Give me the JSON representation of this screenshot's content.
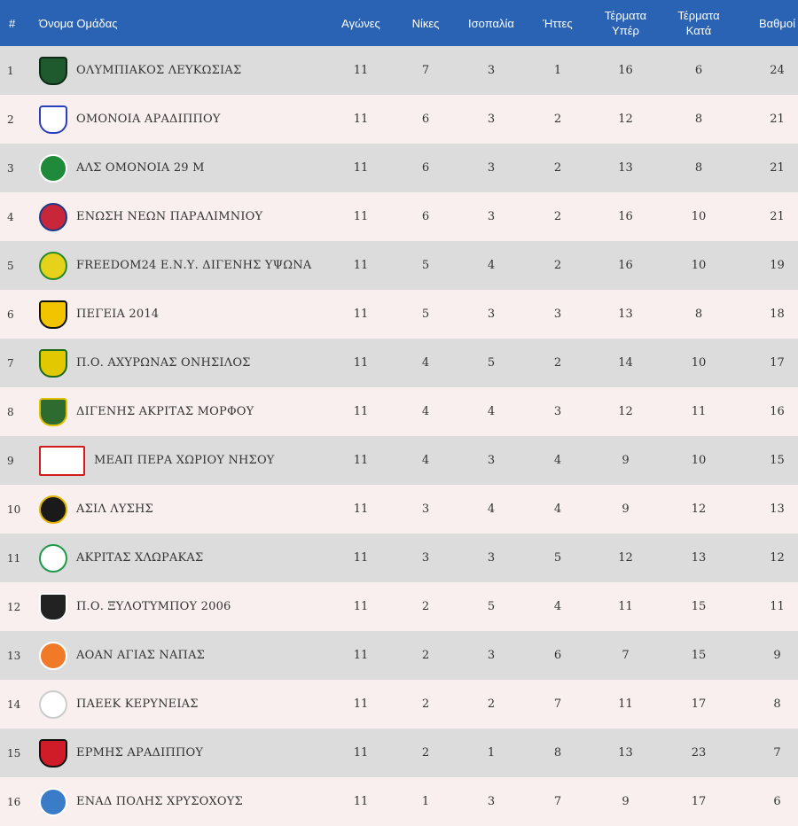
{
  "headers": {
    "pos": "#",
    "team": "Όνομα Ομάδας",
    "played": "Αγώνες",
    "wins": "Νίκες",
    "draws": "Ισοπαλία",
    "losses": "Ήττες",
    "goals_for": "Τέρματα\nΥπέρ",
    "goals_against": "Τέρματα\nΚατά",
    "points": "Βαθμοί"
  },
  "colors": {
    "header_bg": "#2b63b4",
    "row_odd": "#dcdcdc",
    "row_even": "#f9efef"
  },
  "rows": [
    {
      "pos": "1",
      "team": "ΟΛΥΜΠΙΑΚΟΣ ΛΕΥΚΩΣΙΑΣ",
      "played": "11",
      "wins": "7",
      "draws": "3",
      "losses": "1",
      "gf": "16",
      "ga": "6",
      "pts": "24",
      "logo": {
        "icon": "olympiakos-crest-icon",
        "bg": "#1f5a2e",
        "border": "#0d2a14",
        "shape": "shield"
      }
    },
    {
      "pos": "2",
      "team": "ΟΜΟΝΟΙΑ ΑΡΑΔΙΠΠΟΥ",
      "played": "11",
      "wins": "6",
      "draws": "3",
      "losses": "2",
      "gf": "12",
      "ga": "8",
      "pts": "21",
      "logo": {
        "icon": "omonoia-aradippou-crest-icon",
        "bg": "#ffffff",
        "border": "#2a3fbf",
        "shape": "shield"
      }
    },
    {
      "pos": "3",
      "team": "ΑΛΣ ΟΜΟΝΟΙΑ 29 Μ",
      "played": "11",
      "wins": "6",
      "draws": "3",
      "losses": "2",
      "gf": "13",
      "ga": "8",
      "pts": "21",
      "logo": {
        "icon": "omonoia-29m-crest-icon",
        "bg": "#1e8a3a",
        "border": "#ffffff",
        "shape": "circle"
      }
    },
    {
      "pos": "4",
      "team": "ΕΝΩΣΗ ΝΕΩΝ ΠΑΡΑΛΙΜΝΙΟΥ",
      "played": "11",
      "wins": "6",
      "draws": "3",
      "losses": "2",
      "gf": "16",
      "ga": "10",
      "pts": "21",
      "logo": {
        "icon": "enp-crest-icon",
        "bg": "#c8263a",
        "border": "#1c3a8a",
        "shape": "circle"
      }
    },
    {
      "pos": "5",
      "team": "FREEDOM24 Ε.Ν.Υ. ΔΙΓΕΝΗΣ ΥΨΩΝΑ",
      "played": "11",
      "wins": "5",
      "draws": "4",
      "losses": "2",
      "gf": "16",
      "ga": "10",
      "pts": "19",
      "logo": {
        "icon": "digenis-ypsona-crest-icon",
        "bg": "#e6d21a",
        "border": "#2a8a2a",
        "shape": "circle"
      }
    },
    {
      "pos": "6",
      "team": "ΠΕΓΕΙΑ 2014",
      "played": "11",
      "wins": "5",
      "draws": "3",
      "losses": "3",
      "gf": "13",
      "ga": "8",
      "pts": "18",
      "logo": {
        "icon": "pegeia-crest-icon",
        "bg": "#f2c400",
        "border": "#111111",
        "shape": "shield"
      }
    },
    {
      "pos": "7",
      "team": "Π.Ο. ΑΧΥΡΩΝΑΣ ΟΝΗΣΙΛΟΣ",
      "played": "11",
      "wins": "4",
      "draws": "5",
      "losses": "2",
      "gf": "14",
      "ga": "10",
      "pts": "17",
      "logo": {
        "icon": "achyronas-crest-icon",
        "bg": "#e2c800",
        "border": "#1a6a1a",
        "shape": "shield"
      }
    },
    {
      "pos": "8",
      "team": "ΔΙΓΕΝΗΣ ΑΚΡΙΤΑΣ ΜΟΡΦΟΥ",
      "played": "11",
      "wins": "4",
      "draws": "4",
      "losses": "3",
      "gf": "12",
      "ga": "11",
      "pts": "16",
      "logo": {
        "icon": "digenis-morfou-crest-icon",
        "bg": "#2e6b2e",
        "border": "#e0c000",
        "shape": "shield"
      }
    },
    {
      "pos": "9",
      "team": "ΜΕΑΠ ΠΕΡΑ ΧΩΡΙΟΥ ΝΗΣΟΥ",
      "played": "11",
      "wins": "4",
      "draws": "3",
      "losses": "4",
      "gf": "9",
      "ga": "10",
      "pts": "15",
      "logo": {
        "icon": "meap-crest-icon",
        "bg": "#ffffff",
        "border": "#d01c1c",
        "shape": "rect"
      }
    },
    {
      "pos": "10",
      "team": "ΑΣΙΛ ΛΥΣΗΣ",
      "played": "11",
      "wins": "3",
      "draws": "4",
      "losses": "4",
      "gf": "9",
      "ga": "12",
      "pts": "13",
      "logo": {
        "icon": "asil-lysis-crest-icon",
        "bg": "#1a1a1a",
        "border": "#e0b400",
        "shape": "circle"
      }
    },
    {
      "pos": "11",
      "team": "ΑΚΡΙΤΑΣ ΧΛΩΡΑΚΑΣ",
      "played": "11",
      "wins": "3",
      "draws": "3",
      "losses": "5",
      "gf": "12",
      "ga": "13",
      "pts": "12",
      "logo": {
        "icon": "akritas-chlorakas-crest-icon",
        "bg": "#ffffff",
        "border": "#1e9a4a",
        "shape": "circle"
      }
    },
    {
      "pos": "12",
      "team": "Π.Ο. ΞΥΛΟΤΥΜΠΟΥ 2006",
      "played": "11",
      "wins": "2",
      "draws": "5",
      "losses": "4",
      "gf": "11",
      "ga": "15",
      "pts": "11",
      "logo": {
        "icon": "xylotymbou-crest-icon",
        "bg": "#222222",
        "border": "#ffffff",
        "shape": "shield"
      }
    },
    {
      "pos": "13",
      "team": "ΑΟΑΝ ΑΓΙΑΣ ΝΑΠΑΣ",
      "played": "11",
      "wins": "2",
      "draws": "3",
      "losses": "6",
      "gf": "7",
      "ga": "15",
      "pts": "9",
      "logo": {
        "icon": "aoan-crest-icon",
        "bg": "#f07a28",
        "border": "#ffffff",
        "shape": "circle"
      }
    },
    {
      "pos": "14",
      "team": "ΠΑΕΕΚ ΚΕΡΥΝΕΙΑΣ",
      "played": "11",
      "wins": "2",
      "draws": "2",
      "losses": "7",
      "gf": "11",
      "ga": "17",
      "pts": "8",
      "logo": {
        "icon": "paeek-eagle-crest-icon",
        "bg": "#ffffff",
        "border": "#cccccc",
        "shape": "circle"
      }
    },
    {
      "pos": "15",
      "team": "ΕΡΜΗΣ ΑΡΑΔΙΠΠΟΥ",
      "played": "11",
      "wins": "2",
      "draws": "1",
      "losses": "8",
      "gf": "13",
      "ga": "23",
      "pts": "7",
      "logo": {
        "icon": "ermis-aradippou-crest-icon",
        "bg": "#d01c28",
        "border": "#111111",
        "shape": "shield"
      }
    },
    {
      "pos": "16",
      "team": "ΕΝΑΔ ΠΟΛΗΣ ΧΡΥΣΟΧΟΥΣ",
      "played": "11",
      "wins": "1",
      "draws": "3",
      "losses": "7",
      "gf": "9",
      "ga": "17",
      "pts": "6",
      "logo": {
        "icon": "enad-crest-icon",
        "bg": "#3a7cc8",
        "border": "#ffffff",
        "shape": "circle"
      }
    }
  ]
}
